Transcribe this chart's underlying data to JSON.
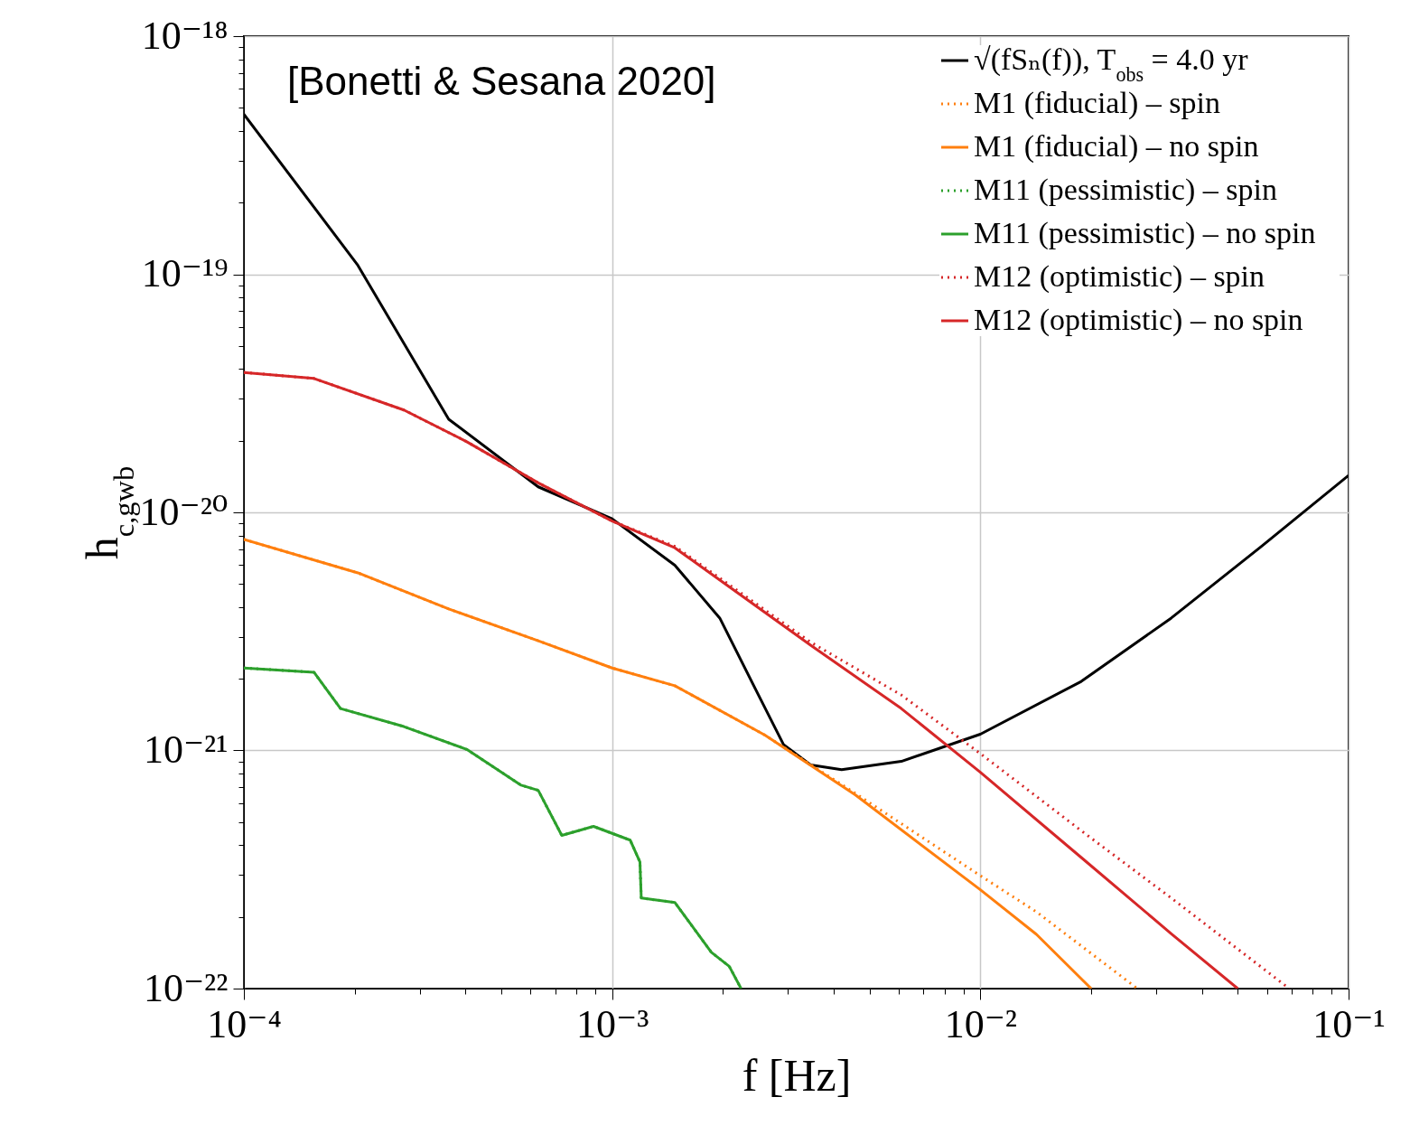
{
  "chart_data": {
    "type": "line",
    "xlabel": "f [Hz]",
    "ylabel": "h$_{c,gwb}$",
    "annotations": [
      "[Bonetti & Sesana 2020]"
    ],
    "log": "xy",
    "grid": true,
    "legend": "top right",
    "xlim": [
      0.0001,
      0.1
    ],
    "ylim": [
      1e-22,
      1e-18
    ],
    "xticks": [
      {
        "value": 0.0001,
        "label": "10⁻⁴"
      },
      {
        "value": 0.0002,
        "label": null
      },
      {
        "value": 0.0003,
        "label": null
      },
      {
        "value": 0.0004,
        "label": null
      },
      {
        "value": 0.0005,
        "label": null
      },
      {
        "value": 0.0006,
        "label": null
      },
      {
        "value": 0.0007,
        "label": null
      },
      {
        "value": 0.0008,
        "label": null
      },
      {
        "value": 0.0009,
        "label": null
      },
      {
        "value": 0.001,
        "label": "10⁻³"
      },
      {
        "value": 0.002,
        "label": null
      },
      {
        "value": 0.003,
        "label": null
      },
      {
        "value": 0.004,
        "label": null
      },
      {
        "value": 0.005,
        "label": null
      },
      {
        "value": 0.006,
        "label": null
      },
      {
        "value": 0.007,
        "label": null
      },
      {
        "value": 0.008,
        "label": null
      },
      {
        "value": 0.009,
        "label": null
      },
      {
        "value": 0.01,
        "label": "10⁻²"
      },
      {
        "value": 0.02,
        "label": null
      },
      {
        "value": 0.03,
        "label": null
      },
      {
        "value": 0.04,
        "label": null
      },
      {
        "value": 0.05,
        "label": null
      },
      {
        "value": 0.06,
        "label": null
      },
      {
        "value": 0.07,
        "label": null
      },
      {
        "value": 0.08,
        "label": null
      },
      {
        "value": 0.09,
        "label": null
      },
      {
        "value": 0.1,
        "label": "10⁻¹"
      }
    ],
    "yticks": [
      {
        "value": 1e-22,
        "label": "10⁻²²"
      },
      {
        "value": 2e-22,
        "label": null
      },
      {
        "value": 3e-22,
        "label": null
      },
      {
        "value": 4e-22,
        "label": null
      },
      {
        "value": 5e-22,
        "label": null
      },
      {
        "value": 6e-22,
        "label": null
      },
      {
        "value": 7e-22,
        "label": null
      },
      {
        "value": 8e-22,
        "label": null
      },
      {
        "value": 9e-22,
        "label": null
      },
      {
        "value": 1e-21,
        "label": "10⁻²¹"
      },
      {
        "value": 2e-21,
        "label": null
      },
      {
        "value": 3e-21,
        "label": null
      },
      {
        "value": 4e-21,
        "label": null
      },
      {
        "value": 5e-21,
        "label": null
      },
      {
        "value": 6e-21,
        "label": null
      },
      {
        "value": 7e-21,
        "label": null
      },
      {
        "value": 8e-21,
        "label": null
      },
      {
        "value": 9e-21,
        "label": null
      },
      {
        "value": 1e-20,
        "label": "10⁻²⁰"
      },
      {
        "value": 2e-20,
        "label": null
      },
      {
        "value": 3e-20,
        "label": null
      },
      {
        "value": 4e-20,
        "label": null
      },
      {
        "value": 5e-20,
        "label": null
      },
      {
        "value": 6e-20,
        "label": null
      },
      {
        "value": 7e-20,
        "label": null
      },
      {
        "value": 8e-20,
        "label": null
      },
      {
        "value": 9e-20,
        "label": null
      },
      {
        "value": 1e-19,
        "label": "10⁻¹⁹"
      },
      {
        "value": 2e-19,
        "label": null
      },
      {
        "value": 3e-19,
        "label": null
      },
      {
        "value": 4e-19,
        "label": null
      },
      {
        "value": 5e-19,
        "label": null
      },
      {
        "value": 6e-19,
        "label": null
      },
      {
        "value": 7e-19,
        "label": null
      },
      {
        "value": 8e-19,
        "label": null
      },
      {
        "value": 9e-19,
        "label": null
      },
      {
        "value": 1e-18,
        "label": "10⁻¹⁸"
      }
    ],
    "series": [
      {
        "name": "√(fSₙ(f)), T$_{obs}$ = 4.0 yr",
        "color": "#000000",
        "line_style": "solid",
        "x": [
          0.0001,
          0.000204,
          0.00036,
          0.00063,
          0.001,
          0.00148,
          0.00196,
          0.00246,
          0.00292,
          0.00346,
          0.0042,
          0.0061,
          0.01,
          0.0188,
          0.033,
          0.058,
          0.1
        ],
        "values": [
          4.7e-19,
          1.09e-19,
          2.46e-20,
          1.28e-20,
          9.4e-21,
          6e-21,
          3.6e-21,
          1.79e-21,
          1.06e-21,
          8.7e-22,
          8.3e-22,
          9e-22,
          1.17e-21,
          1.95e-21,
          3.6e-21,
          7.2e-21,
          1.43e-20
        ]
      },
      {
        "name": "M1 (fiducial) – spin",
        "color": "#ff7f0e",
        "line_style": "dotted",
        "x": [
          0.0001,
          0.000204,
          0.00036,
          0.00063,
          0.001,
          0.00148,
          0.0026,
          0.00458,
          0.01,
          0.0142,
          0.0267
        ],
        "values": [
          7.7e-21,
          5.57e-21,
          3.93e-21,
          2.89e-21,
          2.22e-21,
          1.87e-21,
          1.16e-21,
          6.6e-22,
          2.98e-22,
          2.1e-22,
          1e-22
        ]
      },
      {
        "name": "M1 (fiducial) – no spin",
        "color": "#ff7f0e",
        "line_style": "solid",
        "x": [
          0.0001,
          0.000204,
          0.00036,
          0.00063,
          0.001,
          0.00148,
          0.0026,
          0.00458,
          0.01,
          0.0142,
          0.02
        ],
        "values": [
          7.7e-21,
          5.57e-21,
          3.93e-21,
          2.89e-21,
          2.22e-21,
          1.87e-21,
          1.16e-21,
          6.5e-22,
          2.6e-22,
          1.69e-22,
          1e-22
        ]
      },
      {
        "name": "M11 (pessimistic) – spin",
        "color": "#2ca02c",
        "line_style": "dotted",
        "x": [
          0.0001,
          0.000155,
          0.000183,
          0.000272,
          0.000403,
          0.000566,
          0.00063,
          0.00073,
          0.00089,
          0.00112,
          0.00119,
          0.0012,
          0.00148,
          0.00186,
          0.00208,
          0.00224
        ],
        "values": [
          2.22e-21,
          2.13e-21,
          1.5e-21,
          1.26e-21,
          1.01e-21,
          7.15e-22,
          6.8e-22,
          4.4e-22,
          4.8e-22,
          4.2e-22,
          3.4e-22,
          2.4e-22,
          2.3e-22,
          1.42e-22,
          1.24e-22,
          1e-22
        ]
      },
      {
        "name": "M11 (pessimistic) – no spin",
        "color": "#2ca02c",
        "line_style": "solid",
        "x": [
          0.0001,
          0.000155,
          0.000183,
          0.000272,
          0.000403,
          0.000566,
          0.00063,
          0.00073,
          0.00089,
          0.00112,
          0.00119,
          0.0012,
          0.00148,
          0.00186,
          0.00208,
          0.00224
        ],
        "values": [
          2.22e-21,
          2.13e-21,
          1.5e-21,
          1.26e-21,
          1.01e-21,
          7.15e-22,
          6.8e-22,
          4.4e-22,
          4.8e-22,
          4.2e-22,
          3.4e-22,
          2.4e-22,
          2.3e-22,
          1.42e-22,
          1.24e-22,
          1e-22
        ]
      },
      {
        "name": "M12 (optimistic) – spin",
        "color": "#d62728",
        "line_style": "dotted",
        "x": [
          0.0001,
          0.000155,
          0.000272,
          0.000403,
          0.00063,
          0.001,
          0.00148,
          0.00346,
          0.0061,
          0.01,
          0.0188,
          0.033,
          0.069
        ],
        "values": [
          3.87e-20,
          3.65e-20,
          2.69e-20,
          1.98e-20,
          1.33e-20,
          9.2e-21,
          7.2e-21,
          2.85e-21,
          1.71e-21,
          9.7e-22,
          4.6e-22,
          2.4e-22,
          1e-22
        ]
      },
      {
        "name": "M12 (optimistic) – no spin",
        "color": "#d62728",
        "line_style": "solid",
        "x": [
          0.0001,
          0.000155,
          0.000272,
          0.000403,
          0.00063,
          0.001,
          0.00148,
          0.00346,
          0.0061,
          0.01,
          0.0188,
          0.033,
          0.05
        ],
        "values": [
          3.87e-20,
          3.65e-20,
          2.69e-20,
          1.98e-20,
          1.33e-20,
          9.2e-21,
          7.1e-21,
          2.77e-21,
          1.5e-21,
          8.1e-22,
          3.55e-22,
          1.7e-22,
          1e-22
        ]
      }
    ]
  }
}
